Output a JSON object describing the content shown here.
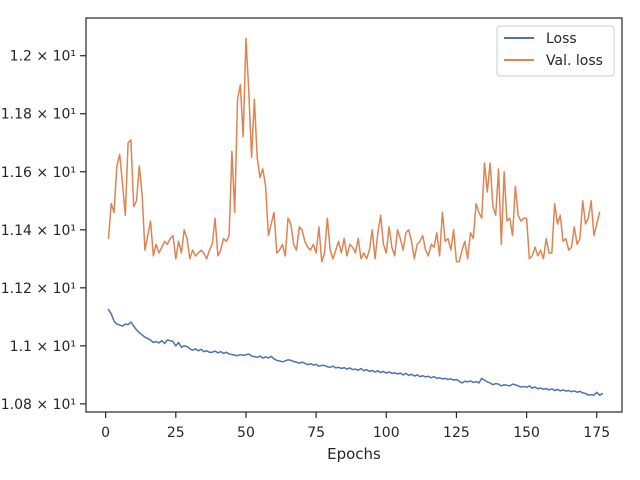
{
  "chart_data": {
    "type": "line",
    "title": "",
    "xlabel": "Epochs",
    "ylabel": "",
    "xlim": [
      -7,
      184
    ],
    "ylim": [
      10.772,
      12.13
    ],
    "grid": false,
    "legend_position": "top-right",
    "x_ticks": [
      {
        "value": 0,
        "label": "0"
      },
      {
        "value": 25,
        "label": "25"
      },
      {
        "value": 50,
        "label": "50"
      },
      {
        "value": 75,
        "label": "75"
      },
      {
        "value": 100,
        "label": "100"
      },
      {
        "value": 125,
        "label": "125"
      },
      {
        "value": 150,
        "label": "150"
      },
      {
        "value": 175,
        "label": "175"
      }
    ],
    "y_ticks": [
      {
        "value": 10.8,
        "label": "1.08 × 10¹"
      },
      {
        "value": 11.0,
        "label": "1.1 × 10¹"
      },
      {
        "value": 11.2,
        "label": "1.12 × 10¹"
      },
      {
        "value": 11.4,
        "label": "1.14 × 10¹"
      },
      {
        "value": 11.6,
        "label": "1.16 × 10¹"
      },
      {
        "value": 11.8,
        "label": "1.18 × 10¹"
      },
      {
        "value": 12.0,
        "label": "1.2 × 10¹"
      }
    ],
    "series": [
      {
        "name": "Loss",
        "color": "#4c72b0",
        "x_start": 1,
        "values": [
          11.125,
          11.11,
          11.085,
          11.075,
          11.072,
          11.068,
          11.075,
          11.073,
          11.082,
          11.068,
          11.055,
          11.045,
          11.038,
          11.03,
          11.025,
          11.02,
          11.012,
          11.015,
          11.01,
          11.018,
          11.008,
          11.02,
          11.018,
          11.015,
          11.0,
          11.012,
          10.995,
          11.0,
          10.998,
          10.99,
          10.985,
          10.99,
          10.983,
          10.988,
          10.98,
          10.983,
          10.978,
          10.978,
          10.982,
          10.976,
          10.98,
          10.974,
          10.978,
          10.972,
          10.97,
          10.968,
          10.966,
          10.97,
          10.967,
          10.969,
          10.972,
          10.965,
          10.963,
          10.96,
          10.965,
          10.958,
          10.962,
          10.958,
          10.964,
          10.955,
          10.95,
          10.948,
          10.945,
          10.948,
          10.952,
          10.95,
          10.946,
          10.944,
          10.94,
          10.944,
          10.94,
          10.935,
          10.938,
          10.934,
          10.936,
          10.93,
          10.933,
          10.932,
          10.928,
          10.926,
          10.93,
          10.924,
          10.926,
          10.922,
          10.925,
          10.92,
          10.924,
          10.918,
          10.92,
          10.916,
          10.922,
          10.914,
          10.918,
          10.912,
          10.915,
          10.91,
          10.914,
          10.908,
          10.912,
          10.906,
          10.91,
          10.905,
          10.907,
          10.903,
          10.906,
          10.9,
          10.905,
          10.898,
          10.902,
          10.896,
          10.9,
          10.894,
          10.897,
          10.893,
          10.895,
          10.89,
          10.894,
          10.888,
          10.89,
          10.886,
          10.888,
          10.884,
          10.886,
          10.882,
          10.884,
          10.878,
          10.872,
          10.878,
          10.876,
          10.879,
          10.874,
          10.877,
          10.872,
          10.888,
          10.882,
          10.876,
          10.872,
          10.866,
          10.87,
          10.868,
          10.862,
          10.866,
          10.864,
          10.862,
          10.868,
          10.866,
          10.862,
          10.858,
          10.86,
          10.857,
          10.862,
          10.854,
          10.858,
          10.852,
          10.855,
          10.85,
          10.853,
          10.848,
          10.852,
          10.846,
          10.85,
          10.845,
          10.848,
          10.844,
          10.846,
          10.842,
          10.845,
          10.84,
          10.843,
          10.838,
          10.836,
          10.83,
          10.832,
          10.83,
          10.84,
          10.83,
          10.835
        ]
      },
      {
        "name": "Val. loss",
        "color": "#dd8452",
        "x_start": 1,
        "values": [
          11.37,
          11.49,
          11.46,
          11.62,
          11.66,
          11.56,
          11.45,
          11.7,
          11.71,
          11.48,
          11.5,
          11.62,
          11.52,
          11.33,
          11.38,
          11.43,
          11.31,
          11.35,
          11.32,
          11.34,
          11.36,
          11.35,
          11.37,
          11.38,
          11.3,
          11.36,
          11.32,
          11.4,
          11.37,
          11.3,
          11.33,
          11.31,
          11.32,
          11.33,
          11.32,
          11.3,
          11.33,
          11.35,
          11.44,
          11.31,
          11.33,
          11.37,
          11.36,
          11.38,
          11.67,
          11.46,
          11.85,
          11.9,
          11.72,
          12.06,
          11.88,
          11.65,
          11.85,
          11.65,
          11.58,
          11.61,
          11.55,
          11.38,
          11.42,
          11.46,
          11.32,
          11.33,
          11.35,
          11.31,
          11.44,
          11.42,
          11.35,
          11.33,
          11.41,
          11.4,
          11.36,
          11.34,
          11.33,
          11.35,
          11.32,
          11.41,
          11.29,
          11.32,
          11.44,
          11.33,
          11.3,
          11.33,
          11.36,
          11.32,
          11.37,
          11.31,
          11.35,
          11.34,
          11.32,
          11.37,
          11.3,
          11.32,
          11.3,
          11.33,
          11.4,
          11.3,
          11.39,
          11.45,
          11.35,
          11.32,
          11.41,
          11.34,
          11.31,
          11.4,
          11.37,
          11.33,
          11.39,
          11.4,
          11.36,
          11.3,
          11.35,
          11.36,
          11.38,
          11.33,
          11.31,
          11.35,
          11.34,
          11.39,
          11.31,
          11.46,
          11.36,
          11.37,
          11.33,
          11.4,
          11.29,
          11.29,
          11.33,
          11.36,
          11.3,
          11.39,
          11.37,
          11.49,
          11.46,
          11.44,
          11.63,
          11.53,
          11.63,
          11.48,
          11.45,
          11.61,
          11.35,
          11.6,
          11.43,
          11.44,
          11.38,
          11.55,
          11.45,
          11.43,
          11.44,
          11.44,
          11.3,
          11.31,
          11.34,
          11.31,
          11.33,
          11.3,
          11.37,
          11.32,
          11.32,
          11.49,
          11.42,
          11.45,
          11.36,
          11.37,
          11.33,
          11.34,
          11.41,
          11.35,
          11.37,
          11.5,
          11.42,
          11.44,
          11.5,
          11.38,
          11.42,
          11.46
        ]
      }
    ]
  }
}
